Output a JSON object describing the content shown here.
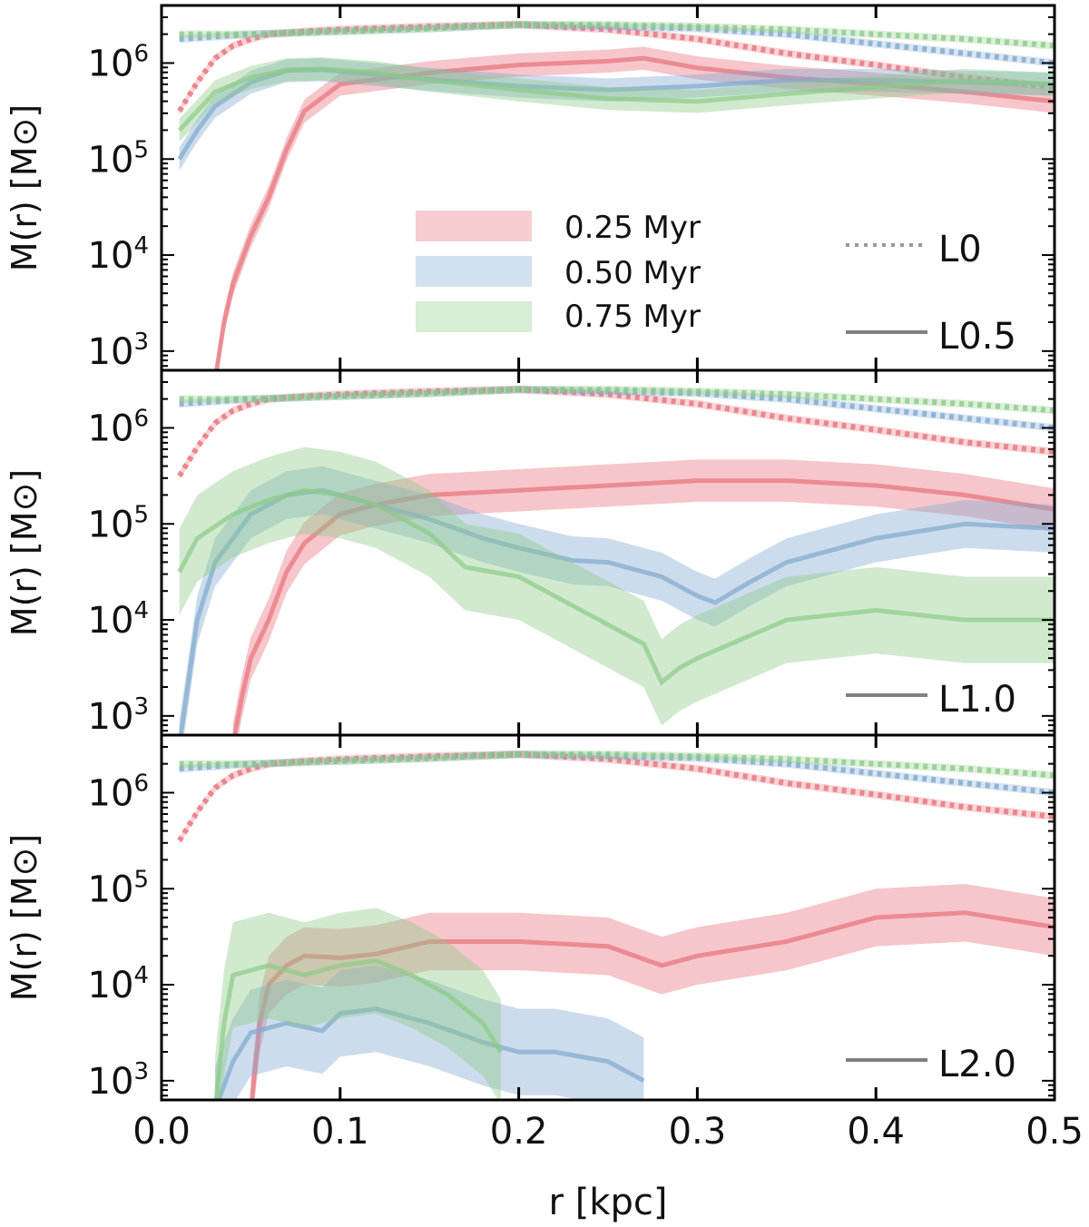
{
  "figure": {
    "x_label": "r [kpc]",
    "y_label": "M(r) [M⊙]"
  },
  "legend": {
    "times": [
      {
        "label": "0.25 Myr",
        "color": "#e8707a"
      },
      {
        "label": "0.50 Myr",
        "color": "#7fa8cf"
      },
      {
        "label": "0.75 Myr",
        "color": "#8ccb86"
      }
    ],
    "styles": [
      {
        "label": "L0",
        "line": "dotted"
      },
      {
        "label": "L0.5",
        "line": "solid"
      }
    ]
  },
  "chart_data": [
    {
      "type": "line",
      "panel_label": "L0.5",
      "xlabel": "r [kpc]",
      "ylabel": "M(r) [M⊙]",
      "xlim": [
        0.0,
        0.5
      ],
      "ylim_log10": [
        2.8,
        6.6
      ],
      "xticks": [
        "0.0",
        "0.1",
        "0.2",
        "0.3",
        "0.4",
        "0.5"
      ],
      "yticks": [
        {
          "exp": 3,
          "label": "10^3"
        },
        {
          "exp": 4,
          "label": "10^4"
        },
        {
          "exp": 5,
          "label": "10^5"
        },
        {
          "exp": 6,
          "label": "10^6"
        }
      ],
      "series": [
        {
          "name": "L0 0.25 Myr",
          "style": "dotted",
          "color": "#e8707a",
          "x": [
            0.01,
            0.02,
            0.03,
            0.04,
            0.05,
            0.06,
            0.08,
            0.1,
            0.15,
            0.2,
            0.25,
            0.3,
            0.35,
            0.4,
            0.45,
            0.5
          ],
          "log10_mass": [
            5.5,
            5.8,
            6.05,
            6.18,
            6.25,
            6.3,
            6.33,
            6.35,
            6.38,
            6.4,
            6.35,
            6.25,
            6.1,
            5.98,
            5.85,
            5.75
          ]
        },
        {
          "name": "L0 0.50 Myr",
          "style": "dotted",
          "color": "#7fa8cf",
          "x": [
            0.01,
            0.05,
            0.1,
            0.15,
            0.2,
            0.25,
            0.3,
            0.35,
            0.4,
            0.45,
            0.5
          ],
          "log10_mass": [
            6.25,
            6.3,
            6.33,
            6.36,
            6.4,
            6.38,
            6.36,
            6.3,
            6.2,
            6.1,
            6.0
          ]
        },
        {
          "name": "L0 0.75 Myr",
          "style": "dotted",
          "color": "#8ccb86",
          "x": [
            0.01,
            0.05,
            0.1,
            0.15,
            0.2,
            0.25,
            0.3,
            0.35,
            0.4,
            0.45,
            0.5
          ],
          "log10_mass": [
            6.3,
            6.3,
            6.33,
            6.36,
            6.4,
            6.4,
            6.38,
            6.35,
            6.3,
            6.25,
            6.18
          ]
        },
        {
          "name": "L0.5 0.25 Myr",
          "style": "solid",
          "color": "#e8707a",
          "x": [
            0.03,
            0.035,
            0.04,
            0.05,
            0.06,
            0.07,
            0.08,
            0.1,
            0.15,
            0.2,
            0.25,
            0.27,
            0.3,
            0.35,
            0.4,
            0.45,
            0.5
          ],
          "log10_mass": [
            2.7,
            3.3,
            3.7,
            4.2,
            4.6,
            5.1,
            5.5,
            5.78,
            5.9,
            5.98,
            6.02,
            6.05,
            5.95,
            5.85,
            5.78,
            5.7,
            5.6
          ],
          "band": 0.12
        },
        {
          "name": "L0.5 0.50 Myr",
          "style": "solid",
          "color": "#7fa8cf",
          "x": [
            0.01,
            0.02,
            0.03,
            0.05,
            0.07,
            0.09,
            0.12,
            0.15,
            0.2,
            0.25,
            0.3,
            0.35,
            0.4,
            0.45,
            0.5
          ],
          "log10_mass": [
            5.0,
            5.3,
            5.55,
            5.8,
            5.92,
            5.93,
            5.88,
            5.83,
            5.76,
            5.72,
            5.76,
            5.82,
            5.82,
            5.8,
            5.78
          ],
          "band": 0.12
        },
        {
          "name": "L0.5 0.75 Myr",
          "style": "solid",
          "color": "#8ccb86",
          "x": [
            0.01,
            0.02,
            0.03,
            0.05,
            0.07,
            0.09,
            0.12,
            0.15,
            0.2,
            0.25,
            0.3,
            0.35,
            0.4,
            0.45,
            0.5
          ],
          "log10_mass": [
            5.3,
            5.5,
            5.7,
            5.85,
            5.93,
            5.94,
            5.9,
            5.82,
            5.72,
            5.63,
            5.6,
            5.68,
            5.75,
            5.82,
            5.78
          ],
          "band": 0.12
        }
      ]
    },
    {
      "type": "line",
      "panel_label": "L1.0",
      "xlabel": "r [kpc]",
      "ylabel": "M(r) [M⊙]",
      "xlim": [
        0.0,
        0.5
      ],
      "ylim_log10": [
        2.8,
        6.6
      ],
      "xticks": [
        "0.0",
        "0.1",
        "0.2",
        "0.3",
        "0.4",
        "0.5"
      ],
      "yticks": [
        {
          "exp": 3,
          "label": "10^3"
        },
        {
          "exp": 4,
          "label": "10^4"
        },
        {
          "exp": 5,
          "label": "10^5"
        },
        {
          "exp": 6,
          "label": "10^6"
        }
      ],
      "series": [
        {
          "name": "L0 0.25 Myr",
          "style": "dotted",
          "color": "#e8707a",
          "x": [
            0.01,
            0.02,
            0.03,
            0.04,
            0.05,
            0.06,
            0.08,
            0.1,
            0.15,
            0.2,
            0.25,
            0.3,
            0.35,
            0.4,
            0.45,
            0.5
          ],
          "log10_mass": [
            5.5,
            5.8,
            6.05,
            6.18,
            6.25,
            6.3,
            6.33,
            6.35,
            6.38,
            6.4,
            6.35,
            6.25,
            6.1,
            5.98,
            5.85,
            5.75
          ]
        },
        {
          "name": "L0 0.50 Myr",
          "style": "dotted",
          "color": "#7fa8cf",
          "x": [
            0.01,
            0.05,
            0.1,
            0.15,
            0.2,
            0.25,
            0.3,
            0.35,
            0.4,
            0.45,
            0.5
          ],
          "log10_mass": [
            6.25,
            6.3,
            6.33,
            6.36,
            6.4,
            6.38,
            6.36,
            6.3,
            6.2,
            6.1,
            6.0
          ]
        },
        {
          "name": "L0 0.75 Myr",
          "style": "dotted",
          "color": "#8ccb86",
          "x": [
            0.01,
            0.05,
            0.1,
            0.15,
            0.2,
            0.25,
            0.3,
            0.35,
            0.4,
            0.45,
            0.5
          ],
          "log10_mass": [
            6.3,
            6.3,
            6.33,
            6.36,
            6.4,
            6.4,
            6.38,
            6.35,
            6.3,
            6.25,
            6.18
          ]
        },
        {
          "name": "L1.0 0.25 Myr",
          "style": "solid",
          "color": "#e8707a",
          "x": [
            0.04,
            0.045,
            0.05,
            0.06,
            0.07,
            0.08,
            0.1,
            0.12,
            0.15,
            0.2,
            0.25,
            0.3,
            0.35,
            0.4,
            0.45,
            0.5
          ],
          "log10_mass": [
            2.7,
            3.2,
            3.6,
            4.0,
            4.5,
            4.8,
            5.1,
            5.2,
            5.3,
            5.35,
            5.4,
            5.45,
            5.45,
            5.4,
            5.3,
            5.15
          ],
          "band": 0.22
        },
        {
          "name": "L1.0 0.50 Myr",
          "style": "solid",
          "color": "#7fa8cf",
          "x": [
            0.01,
            0.02,
            0.03,
            0.05,
            0.07,
            0.09,
            0.12,
            0.15,
            0.18,
            0.2,
            0.23,
            0.25,
            0.28,
            0.3,
            0.31,
            0.33,
            0.35,
            0.4,
            0.45,
            0.5
          ],
          "log10_mass": [
            2.7,
            4.0,
            4.6,
            5.1,
            5.3,
            5.35,
            5.2,
            5.05,
            4.85,
            4.75,
            4.62,
            4.6,
            4.45,
            4.25,
            4.18,
            4.4,
            4.6,
            4.85,
            5.0,
            4.95
          ],
          "band": 0.25
        },
        {
          "name": "L1.0 0.75 Myr",
          "style": "solid",
          "color": "#8ccb86",
          "x": [
            0.01,
            0.02,
            0.04,
            0.06,
            0.08,
            0.1,
            0.12,
            0.15,
            0.17,
            0.2,
            0.24,
            0.27,
            0.28,
            0.29,
            0.3,
            0.35,
            0.4,
            0.45,
            0.5
          ],
          "log10_mass": [
            4.5,
            4.85,
            5.1,
            5.25,
            5.35,
            5.3,
            5.2,
            4.9,
            4.55,
            4.45,
            4.05,
            3.75,
            3.35,
            3.5,
            3.6,
            4.0,
            4.1,
            4.0,
            4.0
          ],
          "band": 0.45
        }
      ]
    },
    {
      "type": "line",
      "panel_label": "L2.0",
      "xlabel": "r [kpc]",
      "ylabel": "M(r) [M⊙]",
      "xlim": [
        0.0,
        0.5
      ],
      "ylim_log10": [
        2.8,
        6.6
      ],
      "xticks": [
        "0.0",
        "0.1",
        "0.2",
        "0.3",
        "0.4",
        "0.5"
      ],
      "yticks": [
        {
          "exp": 3,
          "label": "10^3"
        },
        {
          "exp": 4,
          "label": "10^4"
        },
        {
          "exp": 5,
          "label": "10^5"
        },
        {
          "exp": 6,
          "label": "10^6"
        }
      ],
      "series": [
        {
          "name": "L0 0.25 Myr",
          "style": "dotted",
          "color": "#e8707a",
          "x": [
            0.01,
            0.02,
            0.03,
            0.04,
            0.05,
            0.06,
            0.08,
            0.1,
            0.15,
            0.2,
            0.25,
            0.3,
            0.35,
            0.4,
            0.45,
            0.5
          ],
          "log10_mass": [
            5.5,
            5.8,
            6.05,
            6.18,
            6.25,
            6.3,
            6.33,
            6.35,
            6.38,
            6.4,
            6.35,
            6.25,
            6.1,
            5.98,
            5.85,
            5.75
          ]
        },
        {
          "name": "L0 0.50 Myr",
          "style": "dotted",
          "color": "#7fa8cf",
          "x": [
            0.01,
            0.05,
            0.1,
            0.15,
            0.2,
            0.25,
            0.3,
            0.35,
            0.4,
            0.45,
            0.5
          ],
          "log10_mass": [
            6.25,
            6.3,
            6.33,
            6.36,
            6.4,
            6.38,
            6.36,
            6.3,
            6.2,
            6.1,
            6.0
          ]
        },
        {
          "name": "L0 0.75 Myr",
          "style": "dotted",
          "color": "#8ccb86",
          "x": [
            0.01,
            0.05,
            0.1,
            0.15,
            0.2,
            0.25,
            0.3,
            0.35,
            0.4,
            0.45,
            0.5
          ],
          "log10_mass": [
            6.3,
            6.3,
            6.33,
            6.36,
            6.4,
            6.4,
            6.38,
            6.35,
            6.3,
            6.25,
            6.18
          ]
        },
        {
          "name": "L2.0 0.25 Myr",
          "style": "solid",
          "color": "#e8707a",
          "x": [
            0.05,
            0.055,
            0.06,
            0.07,
            0.08,
            0.1,
            0.12,
            0.15,
            0.2,
            0.25,
            0.28,
            0.3,
            0.35,
            0.4,
            0.45,
            0.5
          ],
          "log10_mass": [
            2.7,
            3.6,
            4.0,
            4.2,
            4.3,
            4.28,
            4.32,
            4.45,
            4.45,
            4.4,
            4.2,
            4.3,
            4.45,
            4.7,
            4.75,
            4.6
          ],
          "band": 0.3
        },
        {
          "name": "L2.0 0.50 Myr",
          "style": "solid",
          "color": "#7fa8cf",
          "x": [
            0.03,
            0.04,
            0.05,
            0.07,
            0.09,
            0.1,
            0.12,
            0.15,
            0.18,
            0.2,
            0.22,
            0.25,
            0.27
          ],
          "log10_mass": [
            2.7,
            3.2,
            3.5,
            3.6,
            3.52,
            3.7,
            3.75,
            3.6,
            3.4,
            3.3,
            3.3,
            3.2,
            3.0
          ],
          "band": 0.45
        },
        {
          "name": "L2.0 0.75 Myr",
          "style": "solid",
          "color": "#8ccb86",
          "x": [
            0.03,
            0.035,
            0.04,
            0.06,
            0.08,
            0.1,
            0.12,
            0.14,
            0.16,
            0.18,
            0.19
          ],
          "log10_mass": [
            2.7,
            3.6,
            4.1,
            4.2,
            4.1,
            4.2,
            4.25,
            4.1,
            3.9,
            3.6,
            3.3
          ],
          "band": 0.55
        }
      ]
    }
  ]
}
